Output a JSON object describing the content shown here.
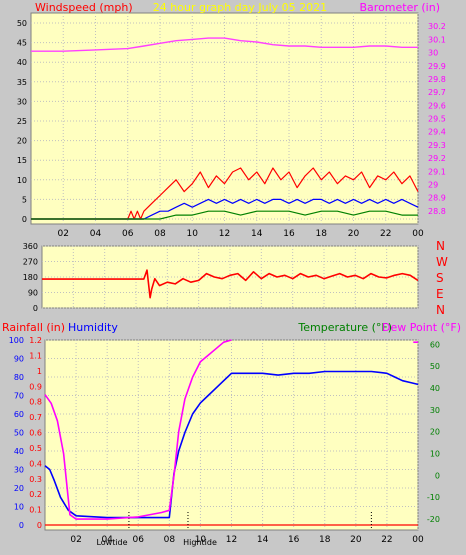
{
  "chart_data": [
    {
      "type": "line",
      "left_axis_label": "Windspeed (mph)",
      "title": "24 hour graph day   July 05 2021",
      "right_axis_label": "Barometer (in)",
      "x_ticks": [
        "02",
        "04",
        "06",
        "08",
        "10",
        "12",
        "14",
        "16",
        "18",
        "20",
        "22",
        "00"
      ],
      "left_ticks": [
        "0",
        "5",
        "10",
        "15",
        "20",
        "25",
        "30",
        "35",
        "40",
        "45",
        "50"
      ],
      "right_ticks": [
        "28.8",
        "28.9",
        "29",
        "29.1",
        "29.2",
        "29.3",
        "29.4",
        "29.5",
        "29.6",
        "29.7",
        "29.8",
        "29.9",
        "30",
        "30.1",
        "30.2"
      ],
      "left_range": [
        0,
        50
      ],
      "right_range": [
        28.7,
        30.3
      ],
      "x_range": [
        0,
        24
      ],
      "series": [
        {
          "color": "#ff40ff",
          "axis": "right",
          "x": [
            0,
            2,
            4,
            6,
            7,
            8,
            9,
            10,
            11,
            12,
            13,
            14,
            15,
            16,
            17,
            18,
            19,
            20,
            21,
            22,
            23,
            24
          ],
          "values": [
            30.01,
            30.01,
            30.02,
            30.03,
            30.05,
            30.07,
            30.09,
            30.1,
            30.11,
            30.11,
            30.09,
            30.08,
            30.06,
            30.05,
            30.05,
            30.04,
            30.04,
            30.04,
            30.05,
            30.05,
            30.04,
            30.04
          ]
        },
        {
          "color": "#ff0000",
          "axis": "left",
          "x": [
            0,
            6.0,
            6.2,
            6.4,
            6.6,
            6.8,
            7.0,
            7.5,
            8,
            8.5,
            9,
            9.5,
            10,
            10.5,
            11,
            11.5,
            12,
            12.5,
            13,
            13.5,
            14,
            14.5,
            15,
            15.5,
            16,
            16.5,
            17,
            17.5,
            18,
            18.5,
            19,
            19.5,
            20,
            20.5,
            21,
            21.5,
            22,
            22.5,
            23,
            23.5,
            24
          ],
          "values": [
            0,
            0,
            2,
            0,
            2,
            0,
            2,
            4,
            6,
            8,
            10,
            7,
            9,
            12,
            8,
            11,
            9,
            12,
            13,
            10,
            12,
            9,
            13,
            10,
            12,
            8,
            11,
            13,
            10,
            12,
            9,
            11,
            10,
            12,
            8,
            11,
            10,
            12,
            9,
            11,
            7
          ]
        },
        {
          "color": "#0000ff",
          "axis": "left",
          "x": [
            0,
            7,
            7.5,
            8,
            8.5,
            9,
            9.5,
            10,
            10.5,
            11,
            11.5,
            12,
            12.5,
            13,
            13.5,
            14,
            14.5,
            15,
            15.5,
            16,
            16.5,
            17,
            17.5,
            18,
            18.5,
            19,
            19.5,
            20,
            20.5,
            21,
            21.5,
            22,
            22.5,
            23,
            23.5,
            24
          ],
          "values": [
            0,
            0,
            1,
            2,
            2,
            3,
            4,
            3,
            4,
            5,
            4,
            5,
            4,
            5,
            4,
            5,
            4,
            5,
            5,
            4,
            5,
            4,
            5,
            5,
            4,
            5,
            4,
            5,
            4,
            5,
            4,
            5,
            4,
            5,
            4,
            3
          ]
        },
        {
          "color": "#008000",
          "axis": "left",
          "x": [
            0,
            7,
            8,
            9,
            10,
            11,
            12,
            13,
            14,
            15,
            16,
            17,
            18,
            19,
            20,
            21,
            22,
            23,
            24
          ],
          "values": [
            0,
            0,
            0,
            1,
            1,
            2,
            2,
            1,
            2,
            2,
            2,
            1,
            2,
            2,
            1,
            2,
            2,
            1,
            1
          ]
        }
      ]
    },
    {
      "type": "line",
      "right_axis_labels": [
        "N",
        "W",
        "S",
        "E",
        "N"
      ],
      "left_ticks": [
        "0",
        "90",
        "180",
        "270",
        "360"
      ],
      "left_range": [
        0,
        360
      ],
      "x_range": [
        0,
        24
      ],
      "series": [
        {
          "color": "#ff0000",
          "x": [
            0,
            6.5,
            6.7,
            6.9,
            7.0,
            7.2,
            7.5,
            8,
            8.5,
            9,
            9.5,
            10,
            10.5,
            11,
            11.5,
            12,
            12.5,
            13,
            13.5,
            14,
            14.5,
            15,
            15.5,
            16,
            16.5,
            17,
            17.5,
            18,
            18.5,
            19,
            19.5,
            20,
            20.5,
            21,
            21.5,
            22,
            22.5,
            23,
            23.5,
            24
          ],
          "values": [
            168,
            168,
            220,
            60,
            110,
            170,
            130,
            150,
            140,
            170,
            150,
            160,
            200,
            180,
            170,
            190,
            200,
            160,
            210,
            170,
            200,
            180,
            190,
            170,
            200,
            180,
            190,
            170,
            185,
            200,
            180,
            190,
            170,
            200,
            180,
            175,
            190,
            200,
            190,
            160
          ]
        }
      ]
    },
    {
      "type": "line",
      "left_axis_label_1": "Rainfall (in)",
      "left_axis_label_2": "Humidity",
      "right_axis_label_1": "Temperature (°F)",
      "right_axis_label_2": "Dew Point (°F)",
      "x_ticks": [
        "02",
        "04",
        "06",
        "08",
        "10",
        "12",
        "14",
        "16",
        "18",
        "20",
        "22",
        "00"
      ],
      "x_annotations": [
        "Lowtide",
        "Hightide"
      ],
      "humidity_ticks": [
        "0",
        "10",
        "20",
        "30",
        "40",
        "50",
        "60",
        "70",
        "80",
        "90",
        "100"
      ],
      "rain_ticks": [
        "0",
        "0.1",
        "0.2",
        "0.3",
        "0.4",
        "0.5",
        "0.6",
        "0.7",
        "0.8",
        "0.9",
        "1",
        "1.1",
        "1.2"
      ],
      "temp_ticks": [
        "-20",
        "-10",
        "0",
        "10",
        "20",
        "30",
        "40",
        "50",
        "60"
      ],
      "humidity_range": [
        0,
        100
      ],
      "temp_range": [
        -25,
        62
      ],
      "x_range": [
        0,
        24
      ],
      "series": [
        {
          "name": "Humidity",
          "color": "#0000ff",
          "axis": "humidity",
          "x": [
            0,
            0.3,
            0.6,
            1.0,
            1.5,
            2.0,
            4,
            6,
            7.5,
            8.0,
            8.3,
            8.6,
            9.0,
            9.5,
            10,
            10.5,
            11,
            11.5,
            12,
            13,
            14,
            15,
            16,
            17,
            18,
            19,
            20,
            21,
            22,
            22.5,
            23,
            23.5,
            24
          ],
          "values": [
            32,
            30,
            24,
            15,
            8,
            5,
            4,
            4,
            4,
            4,
            28,
            40,
            50,
            60,
            66,
            70,
            74,
            78,
            82,
            82,
            82,
            81,
            82,
            82,
            83,
            83,
            83,
            83,
            82,
            80,
            78,
            77,
            76
          ]
        },
        {
          "name": "Dew Point",
          "color": "#ff00ff",
          "axis": "temp",
          "x": [
            0,
            0.4,
            0.8,
            1.2,
            1.6,
            2.0,
            4,
            6,
            7.5,
            8.0,
            8.3,
            8.6,
            9.0,
            9.5,
            10,
            10.5,
            11,
            11.5,
            12.0
          ],
          "values": [
            37,
            33,
            25,
            10,
            -18,
            -20,
            -20,
            -19,
            -17,
            -16,
            0,
            20,
            35,
            45,
            52,
            55,
            58,
            61,
            63
          ]
        }
      ],
      "end_markers": [
        {
          "color": "#ff00ff",
          "x": 23.7,
          "value": 61
        }
      ],
      "dotted_markers": [
        5.4,
        9.2,
        21.0
      ]
    }
  ]
}
